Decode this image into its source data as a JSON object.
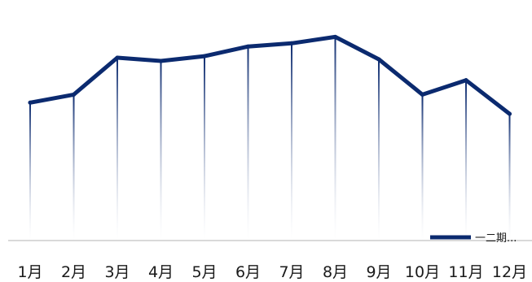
{
  "chart_data": {
    "type": "line",
    "categories": [
      "1月",
      "2月",
      "3月",
      "4月",
      "5月",
      "6月",
      "7月",
      "8月",
      "9月",
      "10月",
      "11月",
      "12月"
    ],
    "series": [
      {
        "name": "一二期...",
        "values": [
          86,
          91,
          114,
          112,
          115,
          121,
          123,
          127,
          113,
          91,
          100,
          79
        ]
      }
    ],
    "ylim": [
      0,
      150
    ],
    "grid": false,
    "legend_position": "bottom-right",
    "colors": {
      "series": "#0b2a6f",
      "gradient_top": "#0b2a6f",
      "gradient_bottom": "#ffffff",
      "axis": "#d9d9d9",
      "text": "#1a1a1a"
    }
  }
}
